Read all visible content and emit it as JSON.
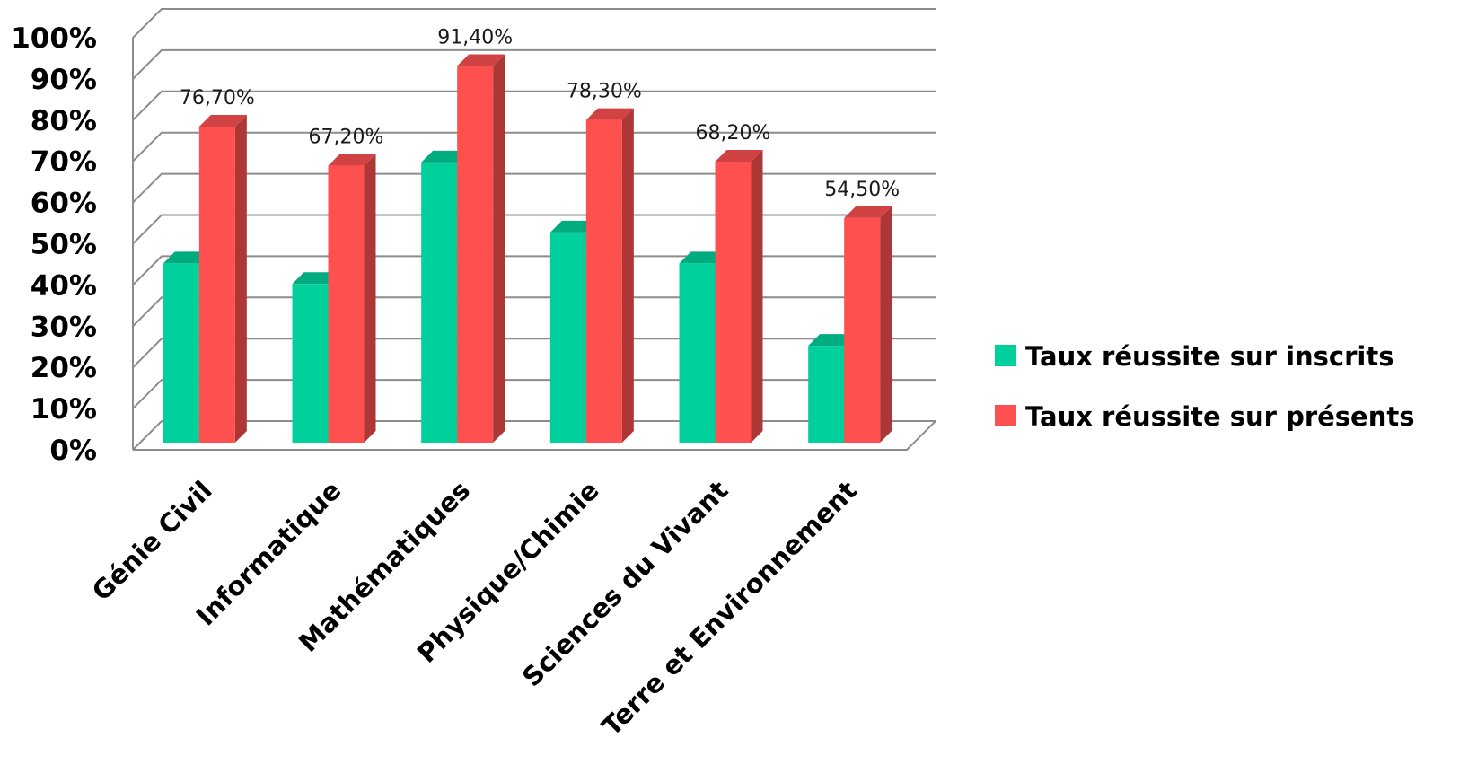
{
  "chart_data": {
    "type": "bar",
    "style": "3d-clustered-column",
    "categories": [
      "Génie Civil",
      "Informatique",
      "Mathématiques",
      "Physique/Chimie",
      "Sciences du Vivant",
      "Terre et Environnement"
    ],
    "series": [
      {
        "name": "Taux réussite sur inscrits",
        "color": "#00d09c",
        "values": [
          43.5,
          38.5,
          68.0,
          51.0,
          43.5,
          23.5
        ],
        "data_labels": [
          "",
          "",
          "",
          "",
          "",
          ""
        ]
      },
      {
        "name": "Taux réussite sur présents",
        "color": "#ff5050",
        "values": [
          76.7,
          67.2,
          91.4,
          78.3,
          68.2,
          54.5
        ],
        "data_labels": [
          "76,70%",
          "67,20%",
          "91,40%",
          "78,30%",
          "68,20%",
          "54,50%"
        ]
      }
    ],
    "y_ticks": [
      "0%",
      "10%",
      "20%",
      "30%",
      "40%",
      "50%",
      "60%",
      "70%",
      "80%",
      "90%",
      "100%"
    ],
    "ylim": [
      0,
      100
    ],
    "grid": true,
    "legend_position": "right",
    "title": "",
    "xlabel": "",
    "ylabel": ""
  }
}
